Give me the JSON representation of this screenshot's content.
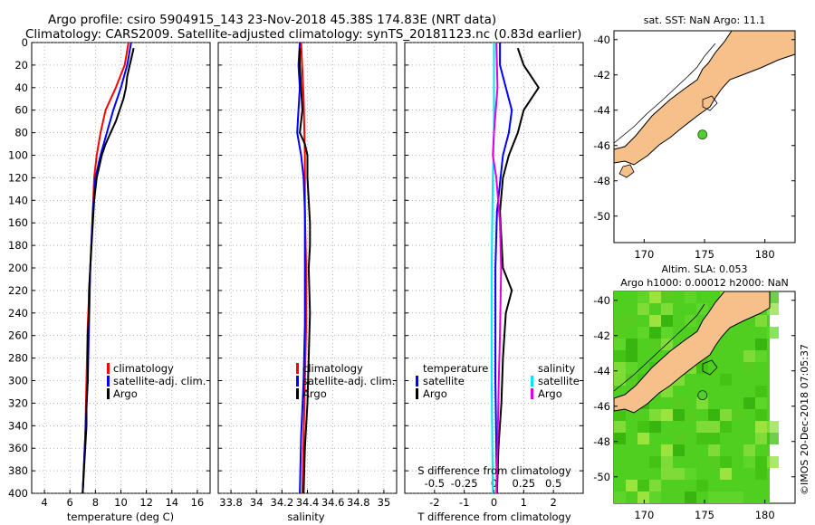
{
  "title": {
    "line1": "Argo profile: csiro 5904915_143 23-Nov-2018 45.38S 174.83E (NRT data)",
    "line2": "Climatology: CARS2009. Satellite-adjusted climatology: synTS_20181123.nc (0.83d earlier)"
  },
  "colors": {
    "climatology": "#ff0000",
    "satellite_adj": "#0000ff",
    "argo": "#000000",
    "sal_satellite": "#00e5ff",
    "sal_climatology": "#e000e0",
    "land": "#f5c08a",
    "sla_bg": "#4fcf1f"
  },
  "depth_ticks": [
    0,
    20,
    40,
    60,
    80,
    100,
    120,
    140,
    160,
    180,
    200,
    220,
    240,
    260,
    280,
    300,
    320,
    340,
    360,
    380,
    400
  ],
  "chart_data": [
    {
      "type": "line",
      "name": "temperature",
      "xlabel": "temperature (deg C)",
      "ylabel": "depth",
      "xlim": [
        3,
        17
      ],
      "ylim": [
        0,
        400
      ],
      "xticks": [
        "4",
        "6",
        "8",
        "10",
        "12",
        "14",
        "16"
      ],
      "xtick_values": [
        4,
        6,
        8,
        10,
        12,
        14,
        16
      ],
      "legend": [
        "climatology",
        "satellite-adj. clim.",
        "Argo"
      ],
      "series": [
        {
          "name": "climatology",
          "color": "#ff0000",
          "depth": [
            0,
            20,
            40,
            60,
            80,
            100,
            120,
            150,
            200,
            250,
            300,
            350,
            400
          ],
          "values": [
            10.6,
            10.3,
            9.6,
            8.8,
            8.4,
            8.1,
            7.9,
            7.8,
            7.6,
            7.4,
            7.3,
            7.2,
            7.0
          ]
        },
        {
          "name": "satellite-adj. clim.",
          "color": "#0000ff",
          "depth": [
            0,
            20,
            40,
            60,
            80,
            100,
            120,
            150,
            200,
            250,
            300,
            350,
            400
          ],
          "values": [
            10.8,
            10.5,
            10.0,
            9.4,
            8.9,
            8.4,
            8.0,
            7.8,
            7.6,
            7.5,
            7.4,
            7.2,
            7.0
          ]
        },
        {
          "name": "Argo",
          "color": "#000000",
          "depth": [
            5,
            10,
            20,
            30,
            40,
            50,
            60,
            70,
            80,
            90,
            100,
            110,
            120,
            140,
            160,
            180,
            200,
            220,
            240,
            260,
            280,
            300,
            320,
            340,
            360,
            380,
            400
          ],
          "values": [
            11.0,
            10.9,
            10.7,
            10.5,
            10.4,
            10.2,
            9.9,
            9.6,
            9.2,
            8.8,
            8.5,
            8.3,
            8.1,
            7.9,
            7.8,
            7.7,
            7.6,
            7.5,
            7.5,
            7.4,
            7.4,
            7.4,
            7.3,
            7.3,
            7.2,
            7.1,
            7.0
          ]
        }
      ]
    },
    {
      "type": "line",
      "name": "salinity",
      "xlabel": "salinity",
      "ylabel": "depth",
      "xlim": [
        33.7,
        35.1
      ],
      "ylim": [
        0,
        400
      ],
      "xticks": [
        "33.8",
        "34",
        "34.2",
        "34.4",
        "34.6",
        "34.8",
        "35"
      ],
      "xtick_values": [
        33.8,
        34.0,
        34.2,
        34.4,
        34.6,
        34.8,
        35.0
      ],
      "legend": [
        "climatology",
        "satellite-adj. clim.",
        "Argo"
      ],
      "series": [
        {
          "name": "climatology",
          "color": "#ff0000",
          "depth": [
            0,
            50,
            100,
            150,
            200,
            250,
            300,
            350,
            400
          ],
          "values": [
            34.35,
            34.37,
            34.38,
            34.38,
            34.39,
            34.39,
            34.38,
            34.37,
            34.36
          ]
        },
        {
          "name": "satellite-adj. clim.",
          "color": "#0000ff",
          "depth": [
            0,
            20,
            40,
            60,
            80,
            100,
            120,
            150,
            200,
            250,
            300,
            350,
            400
          ],
          "values": [
            34.34,
            34.33,
            34.34,
            34.33,
            34.32,
            34.35,
            34.37,
            34.38,
            34.38,
            34.38,
            34.37,
            34.35,
            34.34
          ]
        },
        {
          "name": "Argo",
          "color": "#000000",
          "depth": [
            5,
            20,
            40,
            60,
            80,
            90,
            100,
            120,
            140,
            160,
            180,
            200,
            240,
            280,
            320,
            360,
            400
          ],
          "values": [
            34.34,
            34.34,
            34.35,
            34.36,
            34.34,
            34.38,
            34.4,
            34.4,
            34.41,
            34.42,
            34.42,
            34.41,
            34.42,
            34.41,
            34.4,
            34.38,
            34.37
          ]
        }
      ]
    },
    {
      "type": "line",
      "name": "differences",
      "xlabel": "T difference from climatology",
      "xlabel_top": "S difference from climatology",
      "ylabel": "depth",
      "xlim": [
        -3,
        3
      ],
      "ylim": [
        0,
        400
      ],
      "xticks": [
        "-2",
        "-1",
        "0",
        "1",
        "2"
      ],
      "xtick_values": [
        -2,
        -1,
        0,
        1,
        2
      ],
      "sticks": [
        "-0.5",
        "-0.25",
        "0",
        "0.25",
        "0.5"
      ],
      "stick_values": [
        -0.5,
        -0.25,
        0,
        0.25,
        0.5
      ],
      "legend_temperature_title": "temperature",
      "legend_salinity_title": "salinity",
      "legend_items": [
        "satellite",
        "Argo"
      ],
      "series": [
        {
          "name": "T satellite",
          "color": "#0000ff",
          "depth": [
            0,
            20,
            40,
            60,
            80,
            100,
            150,
            200,
            300,
            400
          ],
          "values": [
            0.2,
            0.2,
            0.4,
            0.6,
            0.5,
            0.3,
            0.1,
            0.05,
            0.05,
            0.1
          ]
        },
        {
          "name": "T Argo",
          "color": "#000000",
          "depth": [
            5,
            20,
            40,
            60,
            80,
            100,
            120,
            150,
            200,
            220,
            240,
            280,
            320,
            360,
            400
          ],
          "values": [
            0.8,
            1.0,
            1.5,
            1.0,
            0.8,
            0.5,
            0.3,
            0.2,
            0.3,
            0.6,
            0.4,
            0.3,
            0.25,
            0.15,
            0.1
          ]
        },
        {
          "name": "S satellite",
          "color": "#00e5ff",
          "depth": [
            0,
            40,
            80,
            120,
            200,
            300,
            400
          ],
          "values": [
            0.0,
            0.0,
            0.0,
            -0.01,
            -0.02,
            -0.02,
            -0.01
          ]
        },
        {
          "name": "S Argo",
          "color": "#e000e0",
          "depth": [
            0,
            40,
            80,
            100,
            120,
            160,
            200,
            260,
            300,
            360,
            400
          ],
          "values": [
            0.02,
            0.03,
            0.0,
            -0.01,
            0.02,
            0.05,
            0.06,
            0.05,
            0.04,
            0.03,
            0.02
          ]
        }
      ]
    }
  ],
  "sst_map": {
    "title": "sat. SST: NaN Argo: 11.1",
    "lat_ticks": [
      "-40",
      "-42",
      "-44",
      "-46",
      "-48",
      "-50"
    ],
    "lat_values": [
      -40,
      -42,
      -44,
      -46,
      -48,
      -50
    ],
    "lon_ticks": [
      "170",
      "175",
      "180"
    ],
    "lon_values": [
      170,
      175,
      180
    ],
    "lon_range": [
      167.5,
      182.5
    ],
    "lat_range": [
      -39.5,
      -51.5
    ],
    "float_lon": 174.83,
    "float_lat": -45.38
  },
  "sla_map": {
    "title_line1": "Altim. SLA: 0.053",
    "title_line2": "Argo h1000: 0.00012 h2000: NaN",
    "lat_ticks": [
      "-40",
      "-42",
      "-44",
      "-46",
      "-48",
      "-50"
    ],
    "lat_values": [
      -40,
      -42,
      -44,
      -46,
      -48,
      -50
    ],
    "lon_ticks": [
      "170",
      "175",
      "180"
    ],
    "lon_values": [
      170,
      175,
      180
    ],
    "lon_range": [
      167.5,
      182.5
    ],
    "lat_range": [
      -39.5,
      -51.5
    ],
    "float_lon": 174.83,
    "float_lat": -45.38
  },
  "credit": "©IMOS 20-Dec-2018 07:05:37"
}
